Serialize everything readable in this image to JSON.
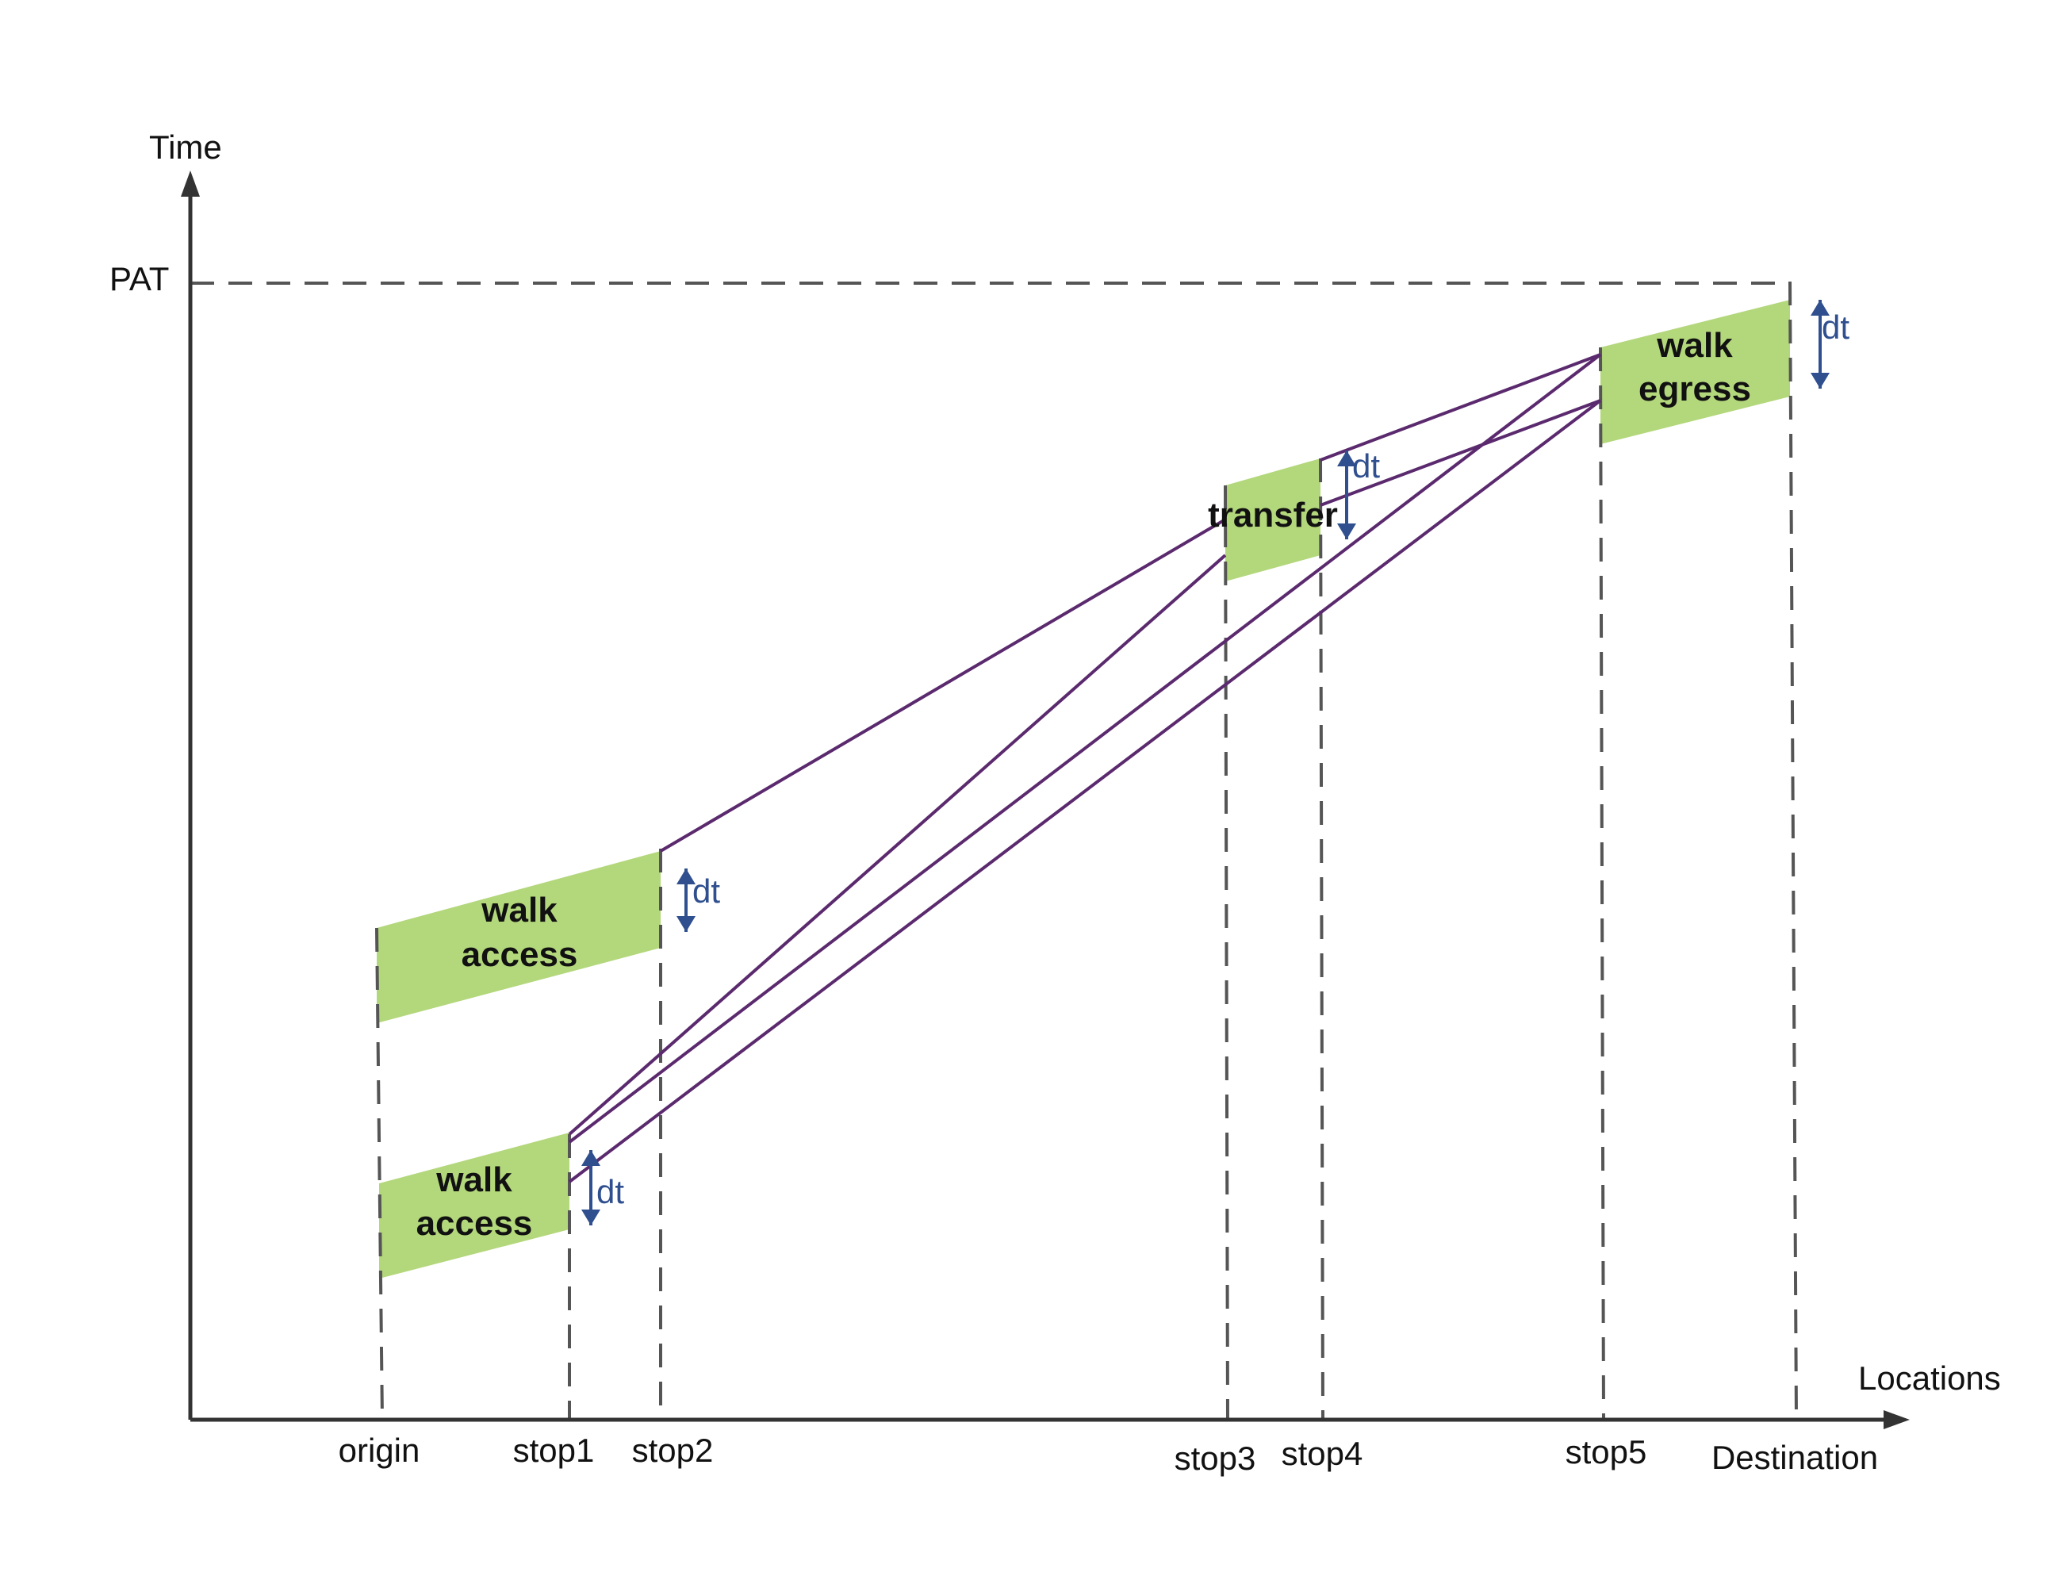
{
  "axes": {
    "y_label": "Time",
    "x_label": "Locations",
    "pat_label": "PAT"
  },
  "locations": [
    {
      "id": "origin",
      "label": "origin"
    },
    {
      "id": "stop1",
      "label": "stop1"
    },
    {
      "id": "stop2",
      "label": "stop2"
    },
    {
      "id": "stop3",
      "label": "stop3"
    },
    {
      "id": "stop4",
      "label": "stop4"
    },
    {
      "id": "stop5",
      "label": "stop5"
    },
    {
      "id": "destination",
      "label": "Destination"
    }
  ],
  "regions": {
    "walk_access_upper": {
      "line1": "walk",
      "line2": "access"
    },
    "walk_access_lower": {
      "line1": "walk",
      "line2": "access"
    },
    "transfer": {
      "label": "transfer"
    },
    "walk_egress": {
      "line1": "walk",
      "line2": "egress"
    }
  },
  "dt_label": "dt",
  "colors": {
    "axis": "#333333",
    "dash": "#555555",
    "region_fill": "#b3d77b",
    "route_line": "#5b2a6e",
    "dt_arrow": "#2f4f8f"
  }
}
